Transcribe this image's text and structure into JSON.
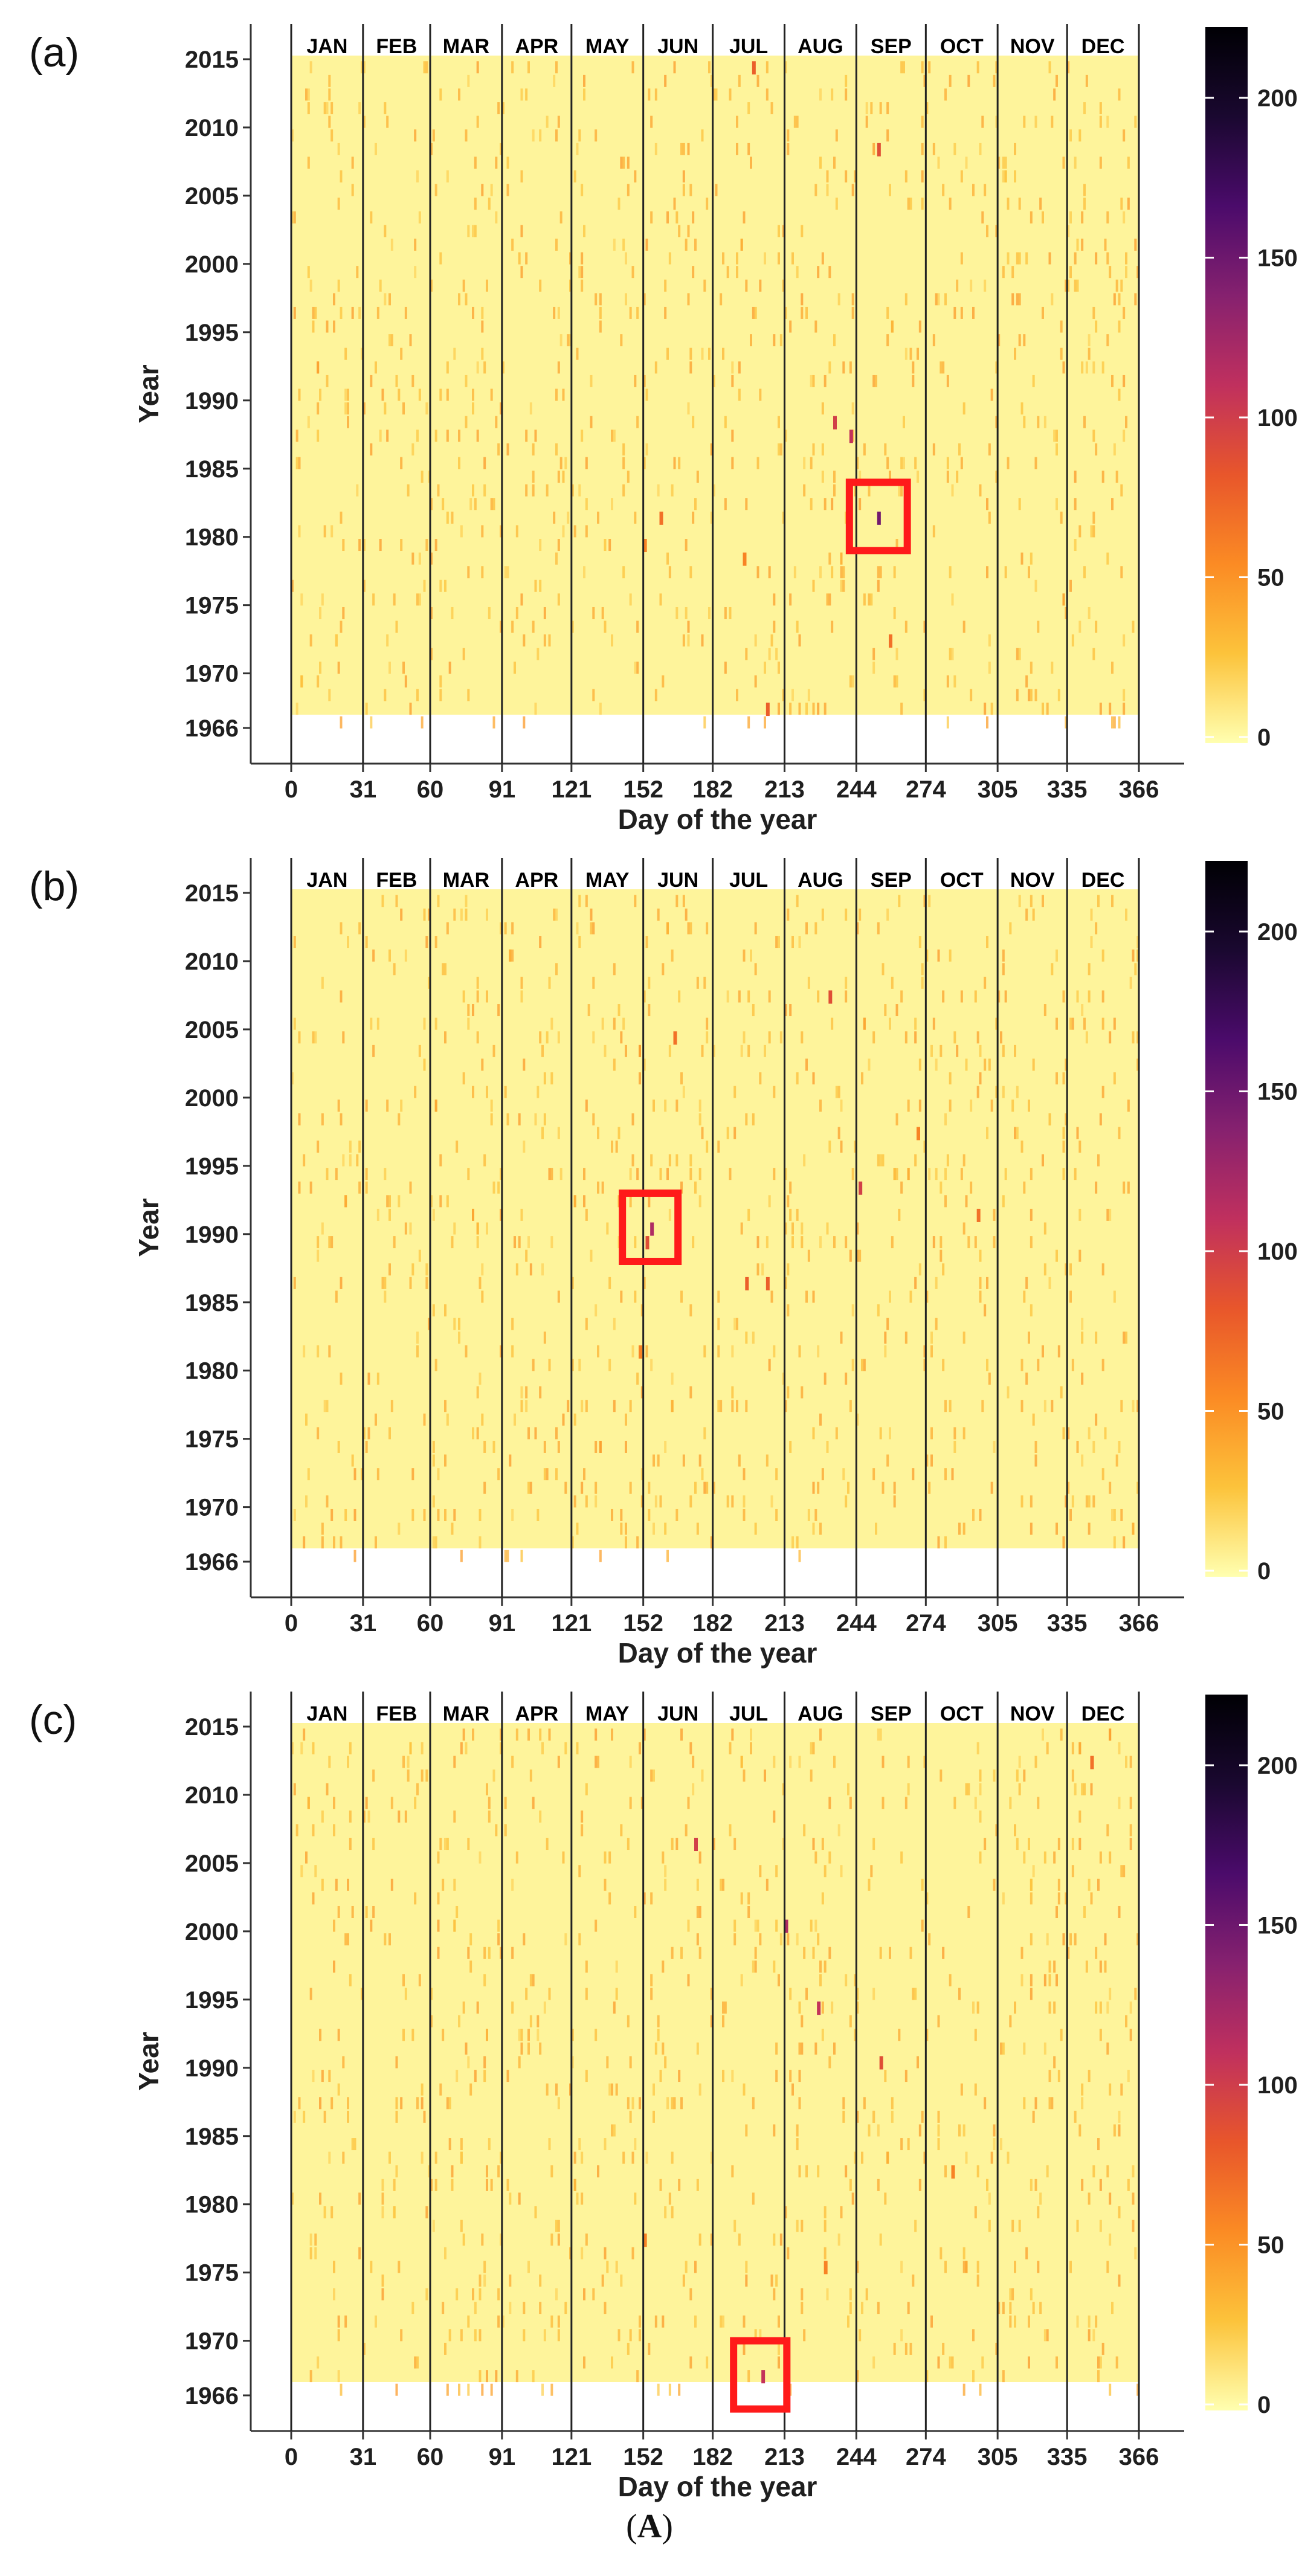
{
  "caption": {
    "prefix": "(",
    "label": "A",
    "suffix": ")"
  },
  "chart_data": [
    {
      "panel_label": "(a)",
      "type": "heatmap",
      "xlabel": "Day of the year",
      "ylabel": "Year",
      "x_ticks": [
        0,
        31,
        60,
        91,
        121,
        152,
        182,
        213,
        244,
        274,
        305,
        335,
        366
      ],
      "y_ticks": [
        2015,
        2010,
        2005,
        2000,
        1995,
        1990,
        1985,
        1980,
        1975,
        1970,
        1966
      ],
      "xlim": [
        0,
        366
      ],
      "ylim": [
        1966,
        2015
      ],
      "months": [
        "JAN",
        "FEB",
        "MAR",
        "APR",
        "MAY",
        "JUN",
        "JUL",
        "AUG",
        "SEP",
        "OCT",
        "NOV",
        "DEC"
      ],
      "colorbar": {
        "ticks": [
          200,
          150,
          100,
          50,
          0
        ],
        "range": [
          0,
          224
        ],
        "colors": [
          "#ffffb0",
          "#fcc33b",
          "#fb8b24",
          "#e8562b",
          "#c0305e",
          "#86216f",
          "#4b0b6b",
          "#1a0830",
          "#000004"
        ]
      },
      "highlight": {
        "day_range": [
          241,
          266
        ],
        "year_range": [
          1979,
          1984
        ]
      },
      "background_value": 5,
      "notable_cells": [
        {
          "day": 253,
          "year": 1981,
          "value": 150
        },
        {
          "day": 241,
          "year": 1987,
          "value": 110
        },
        {
          "day": 234,
          "year": 1988,
          "value": 100
        },
        {
          "day": 253,
          "year": 2008,
          "value": 90
        },
        {
          "day": 199,
          "year": 2014,
          "value": 80
        },
        {
          "day": 205,
          "year": 1967,
          "value": 80
        },
        {
          "day": 159,
          "year": 1981,
          "value": 70
        },
        {
          "day": 258,
          "year": 1972,
          "value": 70
        },
        {
          "day": 152,
          "year": 1979,
          "value": 60
        },
        {
          "day": 195,
          "year": 1978,
          "value": 60
        }
      ]
    },
    {
      "panel_label": "(b)",
      "type": "heatmap",
      "xlabel": "Day of the year",
      "ylabel": "Year",
      "x_ticks": [
        0,
        31,
        60,
        91,
        121,
        152,
        182,
        213,
        244,
        274,
        305,
        335,
        366
      ],
      "y_ticks": [
        2015,
        2010,
        2005,
        2000,
        1995,
        1990,
        1985,
        1980,
        1975,
        1970,
        1966
      ],
      "xlim": [
        0,
        366
      ],
      "ylim": [
        1966,
        2015
      ],
      "months": [
        "JAN",
        "FEB",
        "MAR",
        "APR",
        "MAY",
        "JUN",
        "JUL",
        "AUG",
        "SEP",
        "OCT",
        "NOV",
        "DEC"
      ],
      "colorbar": {
        "ticks": [
          200,
          150,
          100,
          50,
          0
        ],
        "range": [
          0,
          224
        ],
        "colors": [
          "#ffffb0",
          "#fcc33b",
          "#fb8b24",
          "#e8562b",
          "#c0305e",
          "#86216f",
          "#4b0b6b",
          "#1a0830",
          "#000004"
        ]
      },
      "highlight": {
        "day_range": [
          143,
          167
        ],
        "year_range": [
          1988,
          1993
        ]
      },
      "background_value": 5,
      "notable_cells": [
        {
          "day": 155,
          "year": 1990,
          "value": 120
        },
        {
          "day": 153,
          "year": 1989,
          "value": 90
        },
        {
          "day": 245,
          "year": 1993,
          "value": 100
        },
        {
          "day": 232,
          "year": 2007,
          "value": 90
        },
        {
          "day": 196,
          "year": 1986,
          "value": 80
        },
        {
          "day": 205,
          "year": 1986,
          "value": 80
        },
        {
          "day": 296,
          "year": 1991,
          "value": 70
        },
        {
          "day": 165,
          "year": 2004,
          "value": 70
        },
        {
          "day": 150,
          "year": 1981,
          "value": 60
        },
        {
          "day": 270,
          "year": 1997,
          "value": 60
        }
      ]
    },
    {
      "panel_label": "(c)",
      "type": "heatmap",
      "xlabel": "Day of the year",
      "ylabel": "Year",
      "x_ticks": [
        0,
        31,
        60,
        91,
        121,
        152,
        182,
        213,
        244,
        274,
        305,
        335,
        366
      ],
      "y_ticks": [
        2015,
        2010,
        2005,
        2000,
        1995,
        1990,
        1985,
        1980,
        1975,
        1970,
        1966
      ],
      "xlim": [
        0,
        366
      ],
      "ylim": [
        1966,
        2015
      ],
      "months": [
        "JAN",
        "FEB",
        "MAR",
        "APR",
        "MAY",
        "JUN",
        "JUL",
        "AUG",
        "SEP",
        "OCT",
        "NOV",
        "DEC"
      ],
      "colorbar": {
        "ticks": [
          200,
          150,
          100,
          50,
          0
        ],
        "range": [
          0,
          224
        ],
        "colors": [
          "#ffffb0",
          "#fcc33b",
          "#fb8b24",
          "#e8562b",
          "#c0305e",
          "#86216f",
          "#4b0b6b",
          "#1a0830",
          "#000004"
        ]
      },
      "highlight": {
        "day_range": [
          191,
          214
        ],
        "year_range": [
          1965,
          1970
        ]
      },
      "background_value": 5,
      "notable_cells": [
        {
          "day": 203,
          "year": 1967,
          "value": 110
        },
        {
          "day": 213,
          "year": 2000,
          "value": 120
        },
        {
          "day": 227,
          "year": 1994,
          "value": 110
        },
        {
          "day": 174,
          "year": 2006,
          "value": 100
        },
        {
          "day": 254,
          "year": 1990,
          "value": 90
        },
        {
          "day": 345,
          "year": 2012,
          "value": 70
        },
        {
          "day": 152,
          "year": 1977,
          "value": 60
        },
        {
          "day": 230,
          "year": 1975,
          "value": 60
        },
        {
          "day": 285,
          "year": 1982,
          "value": 60
        }
      ]
    }
  ]
}
